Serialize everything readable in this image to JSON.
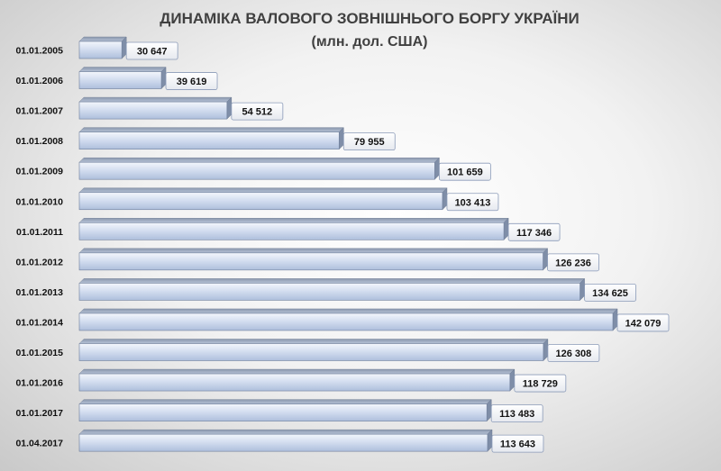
{
  "chart_data": {
    "type": "bar",
    "orientation": "horizontal",
    "title": "ДИНАМІКА ВАЛОВОГО ЗОВНІШНЬОГО БОРГУ УКРАЇНИ",
    "subtitle": "(млн. дол. США)",
    "categories": [
      "01.01.2005",
      "01.01.2006",
      "01.01.2007",
      "01.01.2008",
      "01.01.2009",
      "01.01.2010",
      "01.01.2011",
      "01.01.2012",
      "01.01.2013",
      "01.01.2014",
      "01.01.2015",
      "01.01.2016",
      "01.01.2017",
      "01.04.2017"
    ],
    "values": [
      30647,
      39619,
      54512,
      79955,
      101659,
      103413,
      117346,
      126236,
      134625,
      142079,
      126308,
      118729,
      113483,
      113643
    ],
    "value_labels": [
      "30 647",
      "39 619",
      "54 512",
      "79 955",
      "101 659",
      "103 413",
      "117 346",
      "126 236",
      "134 625",
      "142 079",
      "126 308",
      "118 729",
      "113 483",
      "113 643"
    ],
    "xlim": [
      21000,
      142079
    ],
    "grid": false,
    "legend": "none",
    "colors": {
      "bar_light": "#e9eef8",
      "bar_mid": "#c9d6ec",
      "bar_dark": "#a9bbdb",
      "bar_edge": "#6f7f9c",
      "label_border": "#8a9ab8"
    }
  }
}
